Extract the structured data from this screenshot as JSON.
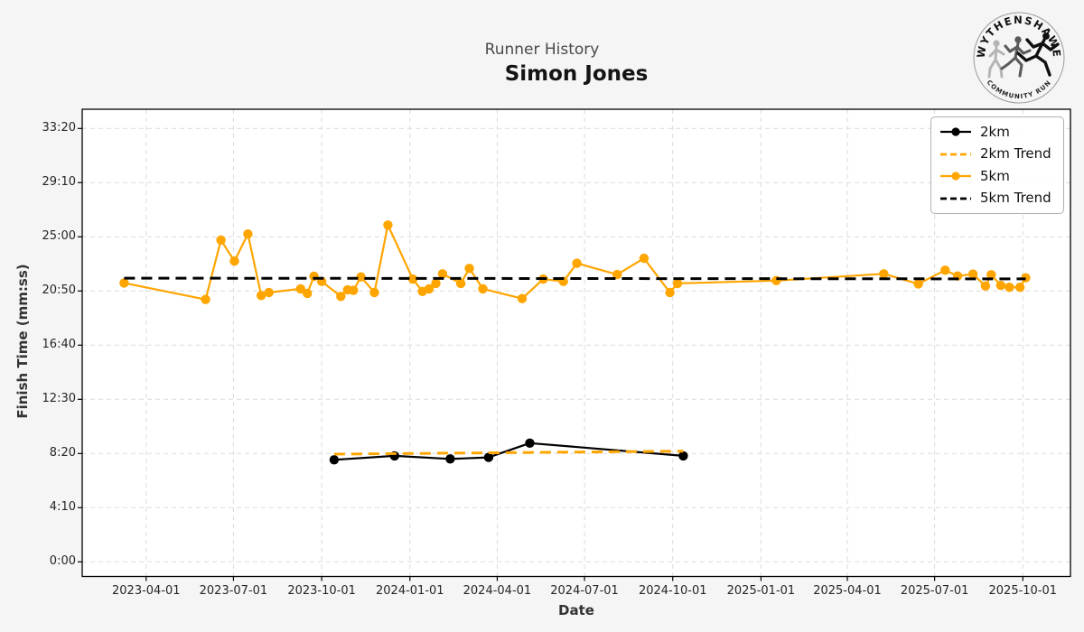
{
  "header": {
    "suptitle": "Runner History",
    "title": "Simon Jones"
  },
  "logo": {
    "top_text": "WYTHENSHAWE",
    "bottom_text": "COMMUNITY RUN"
  },
  "figure": {
    "background": "#f5f5f5",
    "plot_background": "#ffffff",
    "grid_color": "#dbdbdb",
    "frame_color": "#000000",
    "accent_orange": "#FFA500",
    "accent_black": "#000000"
  },
  "chart_data": {
    "type": "line",
    "title": "Runner History",
    "subtitle": "Simon Jones",
    "xlabel": "Date",
    "ylabel": "Finish Time (mm:ss)",
    "grid": true,
    "legend_position": "upper right",
    "x_ticks": [
      "2023-04-01",
      "2023-07-01",
      "2023-10-01",
      "2024-01-01",
      "2024-04-01",
      "2024-07-01",
      "2024-10-01",
      "2025-01-01",
      "2025-04-01",
      "2025-07-01",
      "2025-10-01"
    ],
    "y_ticks": [
      "0:00",
      "4:10",
      "8:20",
      "12:30",
      "16:40",
      "20:50",
      "25:00",
      "29:10",
      "33:20"
    ],
    "y_tick_seconds": [
      0,
      250,
      500,
      750,
      1000,
      1250,
      1500,
      1750,
      2000
    ],
    "xlim": [
      "2023-01-24",
      "2025-11-26"
    ],
    "ylim_seconds": [
      -40,
      2090
    ],
    "series": [
      {
        "name": "2km",
        "color": "#000000",
        "style": "solid",
        "marker": true,
        "points": [
          [
            "2023-10-14",
            "7:51"
          ],
          [
            "2023-12-16",
            "8:09"
          ],
          [
            "2024-02-12",
            "7:55"
          ],
          [
            "2024-03-23",
            "8:02"
          ],
          [
            "2024-05-05",
            "9:08"
          ],
          [
            "2024-10-12",
            "8:09"
          ]
        ]
      },
      {
        "name": "2km Trend",
        "color": "#FFA500",
        "style": "dashed",
        "marker": false,
        "points": [
          [
            "2023-10-14",
            "8:17"
          ],
          [
            "2024-10-12",
            "8:31"
          ]
        ]
      },
      {
        "name": "5km",
        "color": "#FFA500",
        "style": "solid",
        "marker": true,
        "points": [
          [
            "2023-03-09",
            "21:27"
          ],
          [
            "2023-06-02",
            "20:11"
          ],
          [
            "2023-06-18",
            "24:45"
          ],
          [
            "2023-07-02",
            "23:08"
          ],
          [
            "2023-07-16",
            "25:13"
          ],
          [
            "2023-07-30",
            "20:29"
          ],
          [
            "2023-08-07",
            "20:43"
          ],
          [
            "2023-09-09",
            "21:00"
          ],
          [
            "2023-09-16",
            "20:39"
          ],
          [
            "2023-09-23",
            "21:58"
          ],
          [
            "2023-10-01",
            "21:34"
          ],
          [
            "2023-10-21",
            "20:25"
          ],
          [
            "2023-10-28",
            "20:55"
          ],
          [
            "2023-11-03",
            "20:53"
          ],
          [
            "2023-11-11",
            "21:55"
          ],
          [
            "2023-11-25",
            "20:43"
          ],
          [
            "2023-12-09",
            "25:54"
          ],
          [
            "2024-01-04",
            "21:45"
          ],
          [
            "2024-01-14",
            "20:48"
          ],
          [
            "2024-01-21",
            "21:00"
          ],
          [
            "2024-01-28",
            "21:25"
          ],
          [
            "2024-02-04",
            "22:09"
          ],
          [
            "2024-02-23",
            "21:25"
          ],
          [
            "2024-03-03",
            "22:34"
          ],
          [
            "2024-03-17",
            "21:00"
          ],
          [
            "2024-04-27",
            "20:15"
          ],
          [
            "2024-05-19",
            "21:45"
          ],
          [
            "2024-06-09",
            "21:34"
          ],
          [
            "2024-06-23",
            "22:58"
          ],
          [
            "2024-08-04",
            "22:06"
          ],
          [
            "2024-09-01",
            "23:21"
          ],
          [
            "2024-09-28",
            "20:43"
          ],
          [
            "2024-10-06",
            "21:25"
          ],
          [
            "2025-01-17",
            "21:38"
          ],
          [
            "2025-05-09",
            "22:09"
          ],
          [
            "2025-06-14",
            "21:23"
          ],
          [
            "2025-07-12",
            "22:26"
          ],
          [
            "2025-07-25",
            "21:59"
          ],
          [
            "2025-08-10",
            "22:08"
          ],
          [
            "2025-08-23",
            "21:13"
          ],
          [
            "2025-08-29",
            "22:05"
          ],
          [
            "2025-09-08",
            "21:16"
          ],
          [
            "2025-09-17",
            "21:07"
          ],
          [
            "2025-09-28",
            "21:07"
          ],
          [
            "2025-10-04",
            "21:51"
          ]
        ]
      },
      {
        "name": "5km Trend",
        "color": "#000000",
        "style": "dashed",
        "marker": false,
        "points": [
          [
            "2023-03-09",
            "21:49"
          ],
          [
            "2025-10-04",
            "21:46"
          ]
        ]
      }
    ]
  }
}
